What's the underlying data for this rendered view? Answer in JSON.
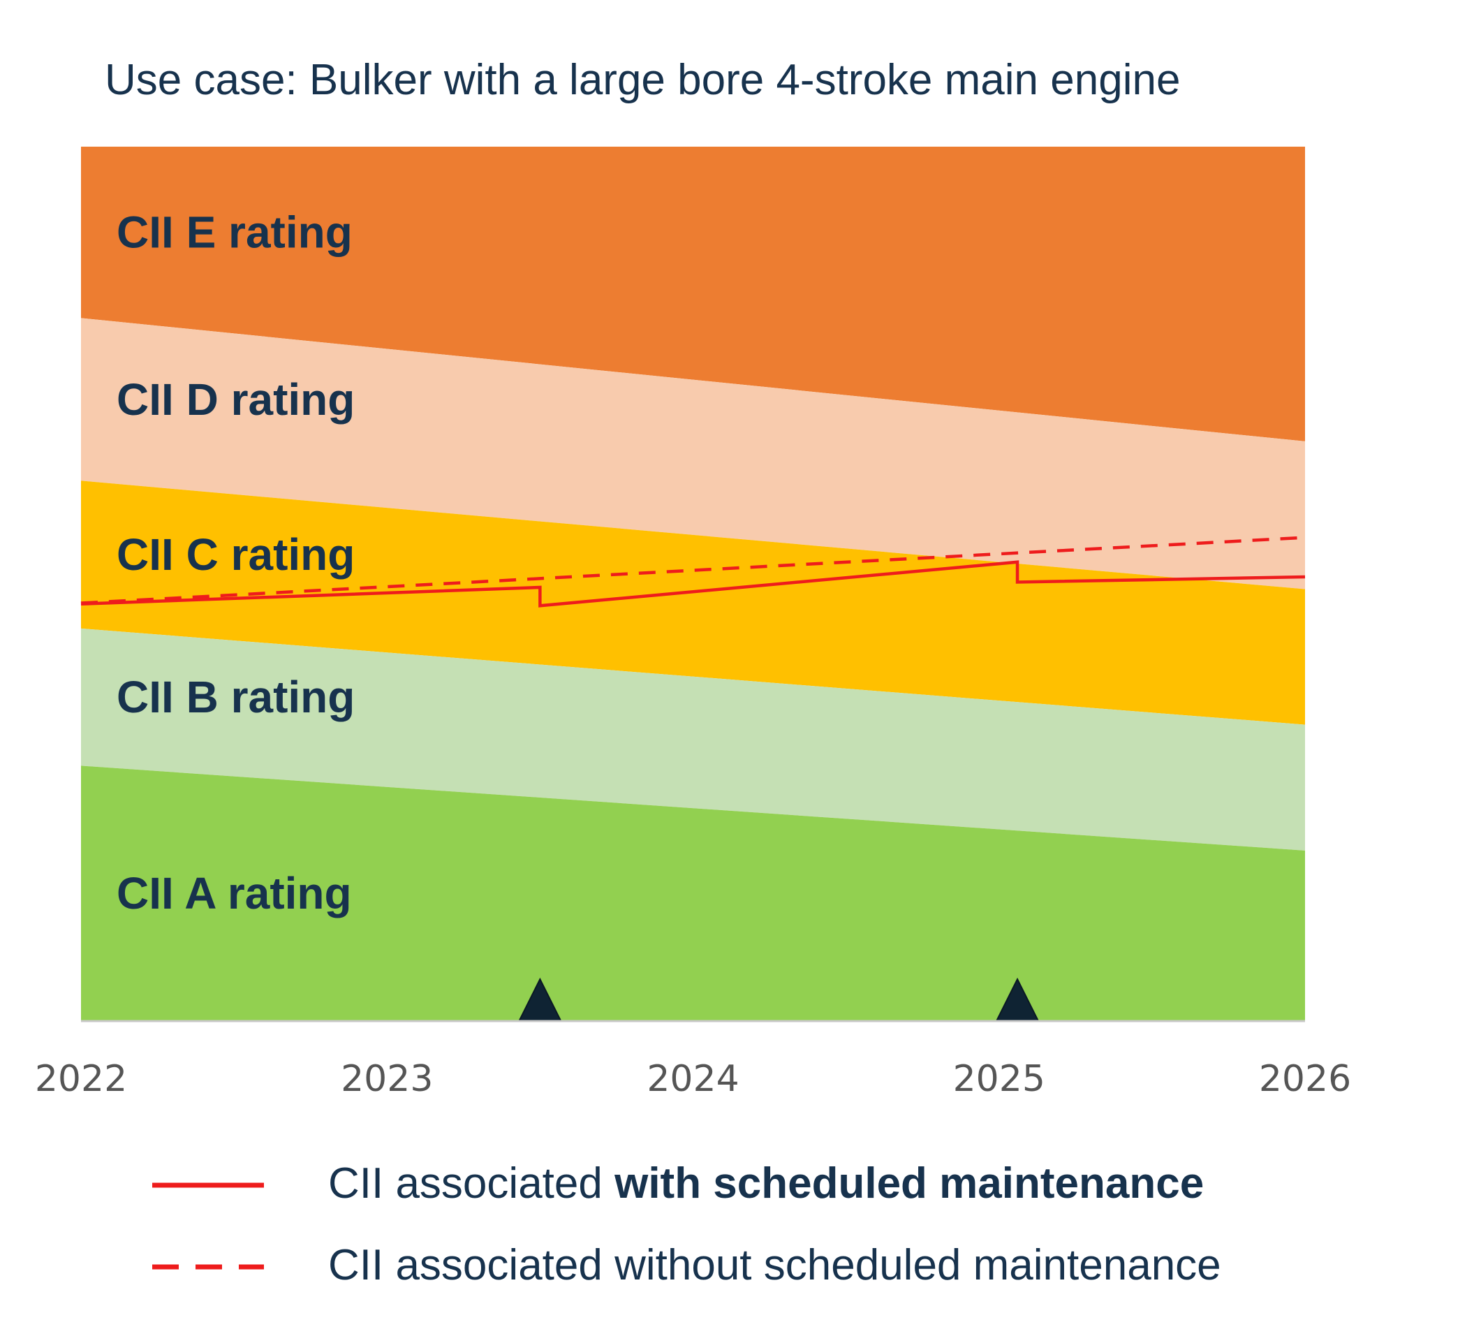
{
  "chart_data": {
    "type": "area",
    "title": "Use case: Bulker with a large bore 4-stroke main engine",
    "x_ticks": [
      "2022",
      "2023",
      "2024",
      "2025",
      "2026"
    ],
    "xlim": [
      2022,
      2026
    ],
    "ylim": [
      0,
      100
    ],
    "xlabel": "",
    "ylabel": "",
    "grid": false,
    "bands": [
      {
        "name": "CII E rating",
        "color": "#ed7d31",
        "lower_start": 80.4,
        "lower_end": 66.3
      },
      {
        "name": "CII D rating",
        "color": "#f8cbad",
        "lower_start": 61.8,
        "lower_end": 49.4
      },
      {
        "name": "CII C rating",
        "color": "#ffc000",
        "lower_start": 44.9,
        "lower_end": 33.9
      },
      {
        "name": "CII B rating",
        "color": "#c5e0b4",
        "lower_start": 29.2,
        "lower_end": 19.5
      },
      {
        "name": "CII A rating",
        "color": "#92d050",
        "lower_start": 0,
        "lower_end": 0
      }
    ],
    "series": [
      {
        "name": "CII associated with scheduled maintenance",
        "style": "solid",
        "color": "#ee1c1c",
        "x": [
          2022.0,
          2023.5,
          2023.5,
          2025.06,
          2025.06,
          2026.0
        ],
        "y": [
          47.7,
          49.6,
          47.5,
          52.5,
          50.2,
          50.8
        ]
      },
      {
        "name": "CII associated without scheduled maintenance",
        "style": "dashed",
        "color": "#ee1c1c",
        "x": [
          2022.0,
          2026.0
        ],
        "y": [
          47.8,
          55.3
        ]
      }
    ],
    "markers": [
      {
        "name": "maintenance-marker",
        "x": 2023.5
      },
      {
        "name": "maintenance-marker",
        "x": 2025.06
      }
    ],
    "legend": {
      "position": "bottom",
      "entries": [
        {
          "style": "solid",
          "prefix": "CII associated ",
          "bold": "with scheduled maintenance"
        },
        {
          "style": "dashed",
          "prefix": "CII associated without scheduled maintenance",
          "bold": ""
        }
      ]
    },
    "colors": {
      "text": "#17324d",
      "tick_text": "#555555",
      "line": "#ee1c1c",
      "marker": "#0f2333"
    }
  }
}
